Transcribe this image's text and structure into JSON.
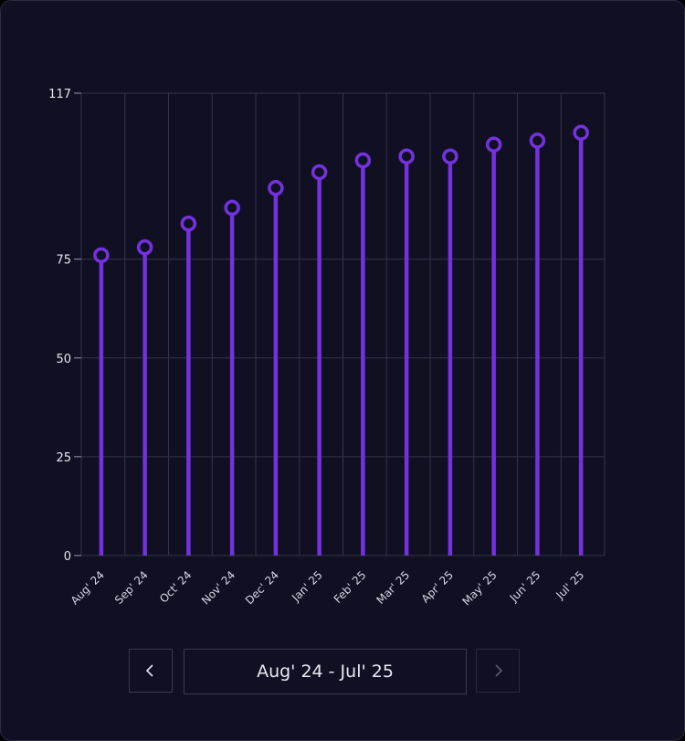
{
  "chart_data": {
    "type": "lollipop",
    "categories": [
      "Aug' 24",
      "Sep' 24",
      "Oct' 24",
      "Nov' 24",
      "Dec' 24",
      "Jan' 25",
      "Feb' 25",
      "Mar' 25",
      "Apr' 25",
      "May' 25",
      "Jun' 25",
      "Jul' 25"
    ],
    "values": [
      76,
      78,
      84,
      88,
      93,
      97,
      100,
      101,
      101,
      104,
      105,
      107
    ],
    "yticks": [
      "117",
      "75",
      "50",
      "25",
      "0"
    ],
    "ylim": [
      0,
      117
    ],
    "grid": true,
    "colors": {
      "series": "#7431e0",
      "grid": "#34334a",
      "background": "#111022"
    }
  },
  "pager": {
    "range_label": "Aug' 24 - Jul' 25",
    "prev_icon": "chevron-left-icon",
    "next_icon": "chevron-right-icon",
    "next_disabled": true
  }
}
